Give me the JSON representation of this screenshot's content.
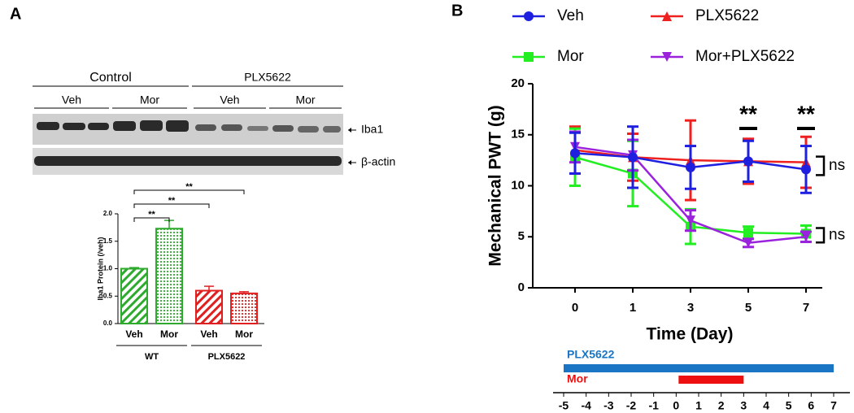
{
  "panel_labels": [
    "A",
    "B"
  ],
  "blot": {
    "groups": [
      {
        "label": "Control",
        "lanes": [
          "Veh",
          "Mor"
        ]
      },
      {
        "label": "PLX5622",
        "lanes": [
          "Veh",
          "Mor"
        ]
      }
    ],
    "bands": [
      "Iba1",
      "β-actin"
    ]
  },
  "chart_data": [
    {
      "type": "bar",
      "ylabel": "Iba1 Protein (/veh)",
      "categories": [
        "Veh",
        "Mor",
        "Veh",
        "Mor"
      ],
      "groups": [
        {
          "label": "WT",
          "span": [
            0,
            1
          ]
        },
        {
          "label": "PLX5622",
          "span": [
            2,
            3
          ]
        }
      ],
      "values": [
        1.0,
        1.73,
        0.6,
        0.55
      ],
      "errors": [
        0.02,
        0.15,
        0.08,
        0.03
      ],
      "colors": [
        "#2eaa2e",
        "#2eaa2e",
        "#e02020",
        "#e02020"
      ],
      "patterns": [
        "stripes",
        "dots",
        "stripes",
        "dots"
      ],
      "ylim": [
        0,
        2
      ],
      "yticks": [
        {
          "value": 0,
          "label": "0.0"
        },
        {
          "value": 0.5,
          "label": "0.5"
        },
        {
          "value": 1,
          "label": "1.0"
        },
        {
          "value": 1.5,
          "label": "1.5"
        },
        {
          "value": 2,
          "label": "2.0"
        }
      ],
      "significance": [
        {
          "label": "**",
          "pair": [
            0,
            1
          ]
        },
        {
          "label": "**",
          "pair": [
            0,
            2
          ]
        },
        {
          "label": "**",
          "pair": [
            0,
            3
          ]
        }
      ]
    },
    {
      "type": "line",
      "xlabel": "Time (Day)",
      "ylabel": "Mechanical PWT (g)",
      "categories": [
        "0",
        "1",
        "3",
        "5",
        "7"
      ],
      "series": [
        {
          "name": "Veh",
          "color": "#1f1fe0",
          "marker": "circle",
          "values": [
            13.2,
            12.8,
            11.8,
            12.4,
            11.6
          ],
          "errors": [
            2.0,
            3.0,
            2.1,
            2.0,
            2.3
          ]
        },
        {
          "name": "PLX5622",
          "color": "#ee2020",
          "marker": "triangle",
          "values": [
            13.5,
            12.8,
            12.5,
            12.4,
            12.3
          ],
          "errors": [
            2.3,
            2.3,
            3.9,
            2.2,
            2.5
          ]
        },
        {
          "name": "Mor",
          "color": "#22ee22",
          "marker": "square",
          "values": [
            12.8,
            11.2,
            6.0,
            5.4,
            5.3
          ],
          "errors": [
            2.8,
            3.2,
            1.7,
            0.6,
            0.8
          ]
        },
        {
          "name": "Mor+PLX5622",
          "color": "#9a22dd",
          "marker": "triangle-down",
          "values": [
            13.8,
            13.0,
            6.6,
            4.4,
            5.0
          ],
          "errors": [
            1.5,
            1.5,
            1.0,
            0.4,
            0.5
          ]
        }
      ],
      "ylim": [
        0,
        20
      ],
      "yticks": [
        0,
        5,
        10,
        15,
        20
      ],
      "annotations": [
        {
          "text": "**",
          "category": 3
        },
        {
          "text": "**",
          "category": 4
        }
      ],
      "brackets": [
        {
          "text": "ns",
          "series": [
            0,
            1
          ]
        },
        {
          "text": "ns",
          "series": [
            2,
            3
          ]
        }
      ]
    },
    {
      "type": "timeline",
      "xlim": [
        -5,
        7
      ],
      "xticks": [
        -5,
        -4,
        -3,
        -2,
        -1,
        0,
        1,
        2,
        3,
        4,
        5,
        6,
        7
      ],
      "bars": [
        {
          "name": "PLX5622",
          "color": "#1a75c4",
          "start": -5,
          "end": 7
        },
        {
          "name": "Mor",
          "color": "#ee1010",
          "start": 0,
          "end": 3
        }
      ]
    }
  ]
}
